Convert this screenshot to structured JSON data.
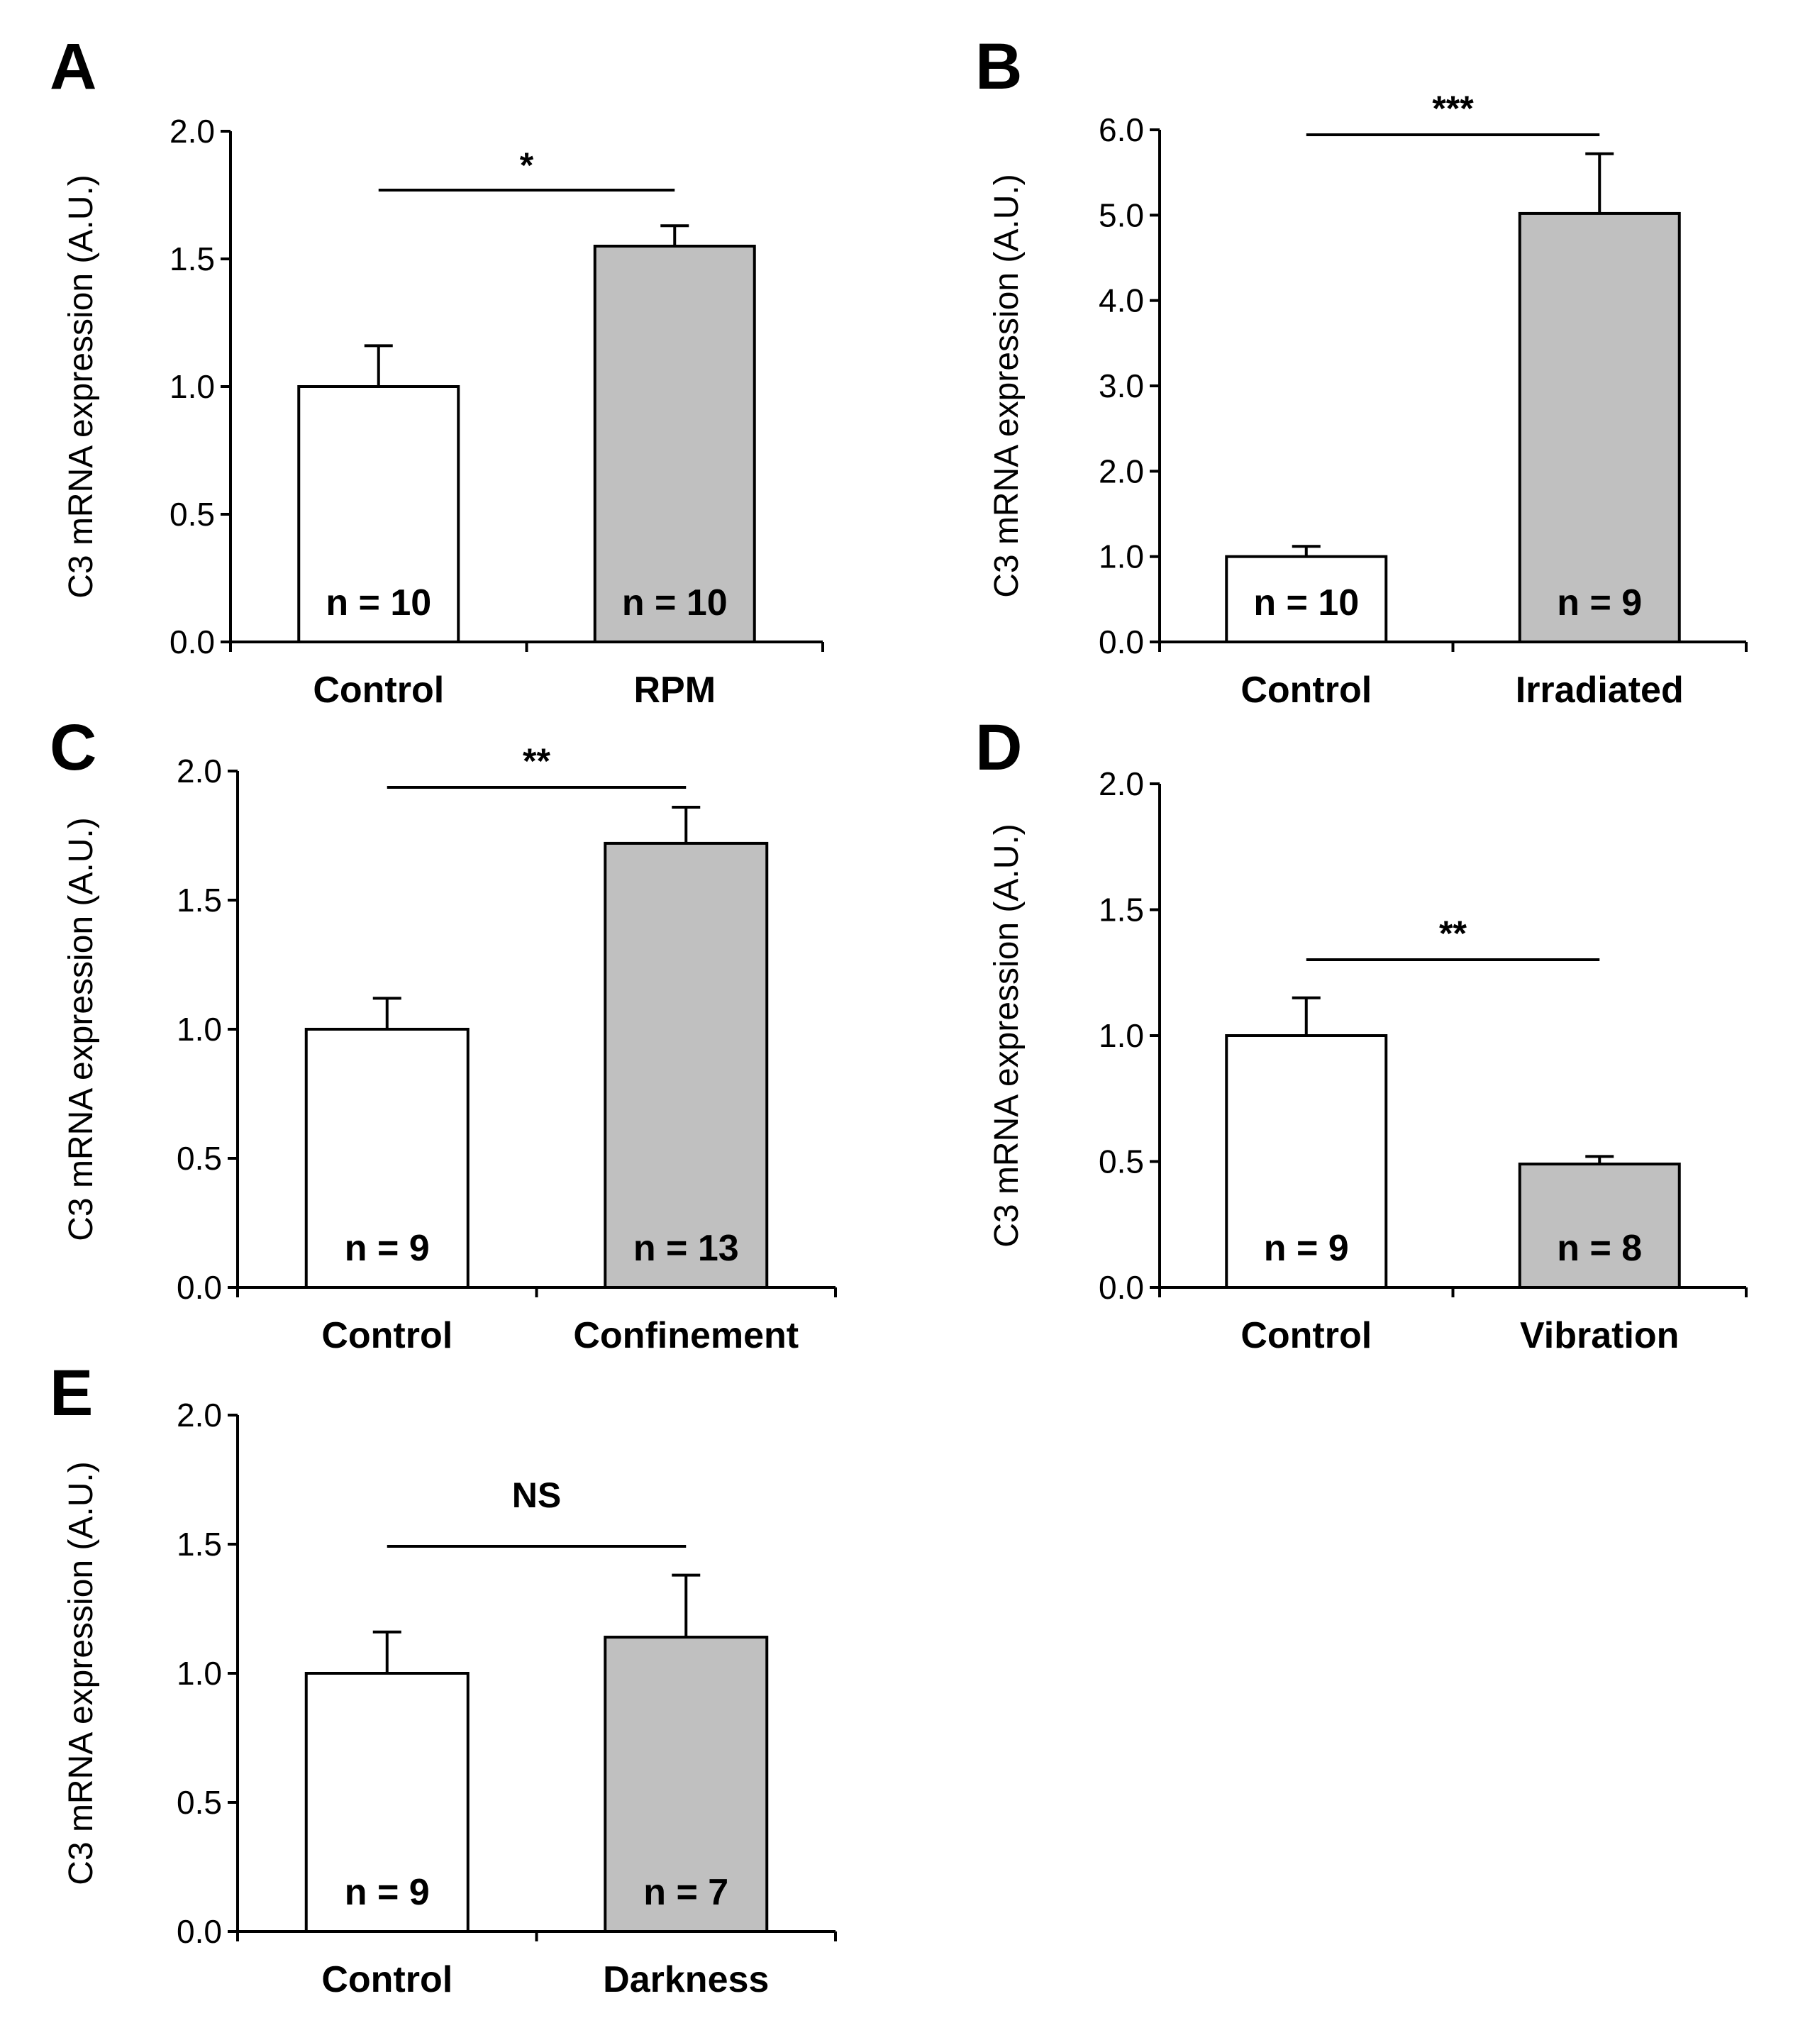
{
  "chart_data": [
    {
      "panel": "A",
      "type": "bar",
      "ylabel": "C3 mRNA expression (A.U.)",
      "ylim": [
        0,
        2
      ],
      "yticks": [
        "0.0",
        "0.5",
        "1.0",
        "1.5",
        "2.0"
      ],
      "categories": [
        "Control",
        "RPM"
      ],
      "values": [
        1.0,
        1.55
      ],
      "errors": [
        0.16,
        0.08
      ],
      "n_labels": [
        "n = 10",
        "n = 10"
      ],
      "colors": [
        "#ffffff",
        "#c0c0c0"
      ],
      "significance": "*"
    },
    {
      "panel": "B",
      "type": "bar",
      "ylabel": "C3 mRNA expression (A.U.)",
      "ylim": [
        0,
        6
      ],
      "yticks": [
        "0.0",
        "1.0",
        "2.0",
        "3.0",
        "4.0",
        "5.0",
        "6.0"
      ],
      "categories": [
        "Control",
        "Irradiated"
      ],
      "values": [
        1.0,
        5.02
      ],
      "errors": [
        0.12,
        0.7
      ],
      "n_labels": [
        "n = 10",
        "n = 9"
      ],
      "colors": [
        "#ffffff",
        "#c0c0c0"
      ],
      "significance": "***"
    },
    {
      "panel": "C",
      "type": "bar",
      "ylabel": "C3 mRNA expression (A.U.)",
      "ylim": [
        0,
        2
      ],
      "yticks": [
        "0.0",
        "0.5",
        "1.0",
        "1.5",
        "2.0"
      ],
      "categories": [
        "Control",
        "Confinement"
      ],
      "values": [
        1.0,
        1.72
      ],
      "errors": [
        0.12,
        0.14
      ],
      "n_labels": [
        "n = 9",
        "n = 13"
      ],
      "colors": [
        "#ffffff",
        "#c0c0c0"
      ],
      "significance": "**"
    },
    {
      "panel": "D",
      "type": "bar",
      "ylabel": "C3 mRNA expression (A.U.)",
      "ylim": [
        0,
        2
      ],
      "yticks": [
        "0.0",
        "0.5",
        "1.0",
        "1.5",
        "2.0"
      ],
      "categories": [
        "Control",
        "Vibration"
      ],
      "values": [
        1.0,
        0.49
      ],
      "errors": [
        0.15,
        0.03
      ],
      "n_labels": [
        "n = 9",
        "n = 8"
      ],
      "colors": [
        "#ffffff",
        "#c0c0c0"
      ],
      "significance": "**"
    },
    {
      "panel": "E",
      "type": "bar",
      "ylabel": "C3 mRNA expression (A.U.)",
      "ylim": [
        0,
        2
      ],
      "yticks": [
        "0.0",
        "0.5",
        "1.0",
        "1.5",
        "2.0"
      ],
      "categories": [
        "Control",
        "Darkness"
      ],
      "values": [
        1.0,
        1.14
      ],
      "errors": [
        0.16,
        0.24
      ],
      "n_labels": [
        "n = 9",
        "n = 7"
      ],
      "colors": [
        "#ffffff",
        "#c0c0c0"
      ],
      "significance": "NS"
    }
  ]
}
